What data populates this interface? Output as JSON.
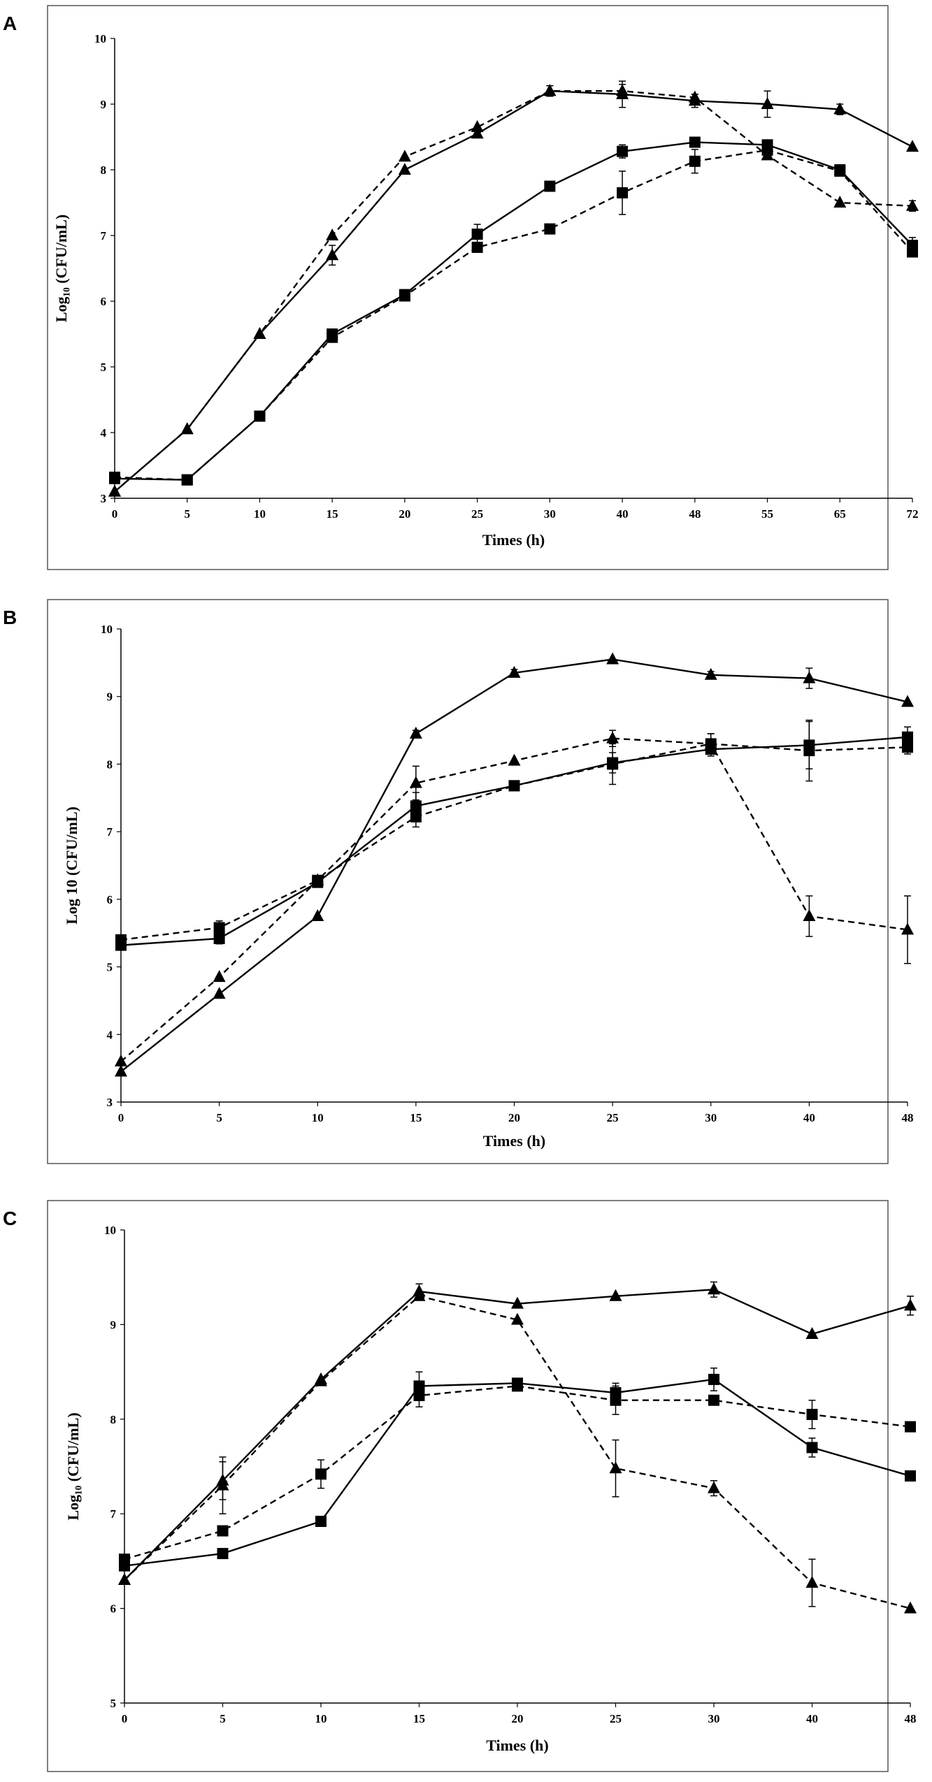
{
  "figure": {
    "marker_color": "#000000",
    "line_color": "#000000",
    "frame_color": "#555555"
  },
  "chart_data": [
    {
      "panel": "A",
      "type": "line",
      "title": "",
      "xlabel": "Times (h)",
      "ylabel": "Log₁₀ (CFU/mL)",
      "categories": [
        "0",
        "5",
        "10",
        "15",
        "20",
        "25",
        "30",
        "40",
        "48",
        "55",
        "65",
        "72"
      ],
      "yticks": [
        3,
        4,
        5,
        6,
        7,
        8,
        9,
        10
      ],
      "ylim": [
        3,
        10
      ],
      "grid": false,
      "series": [
        {
          "name": "triangle-solid",
          "marker": "triangle",
          "dash": false,
          "values": [
            3.1,
            4.05,
            5.5,
            6.7,
            8.0,
            8.55,
            9.2,
            9.15,
            9.05,
            9.0,
            8.92,
            8.35
          ],
          "errors": [
            0,
            0,
            0,
            0.15,
            0,
            0,
            0.08,
            0.2,
            0.1,
            0.2,
            0.08,
            0
          ]
        },
        {
          "name": "triangle-dashed",
          "marker": "triangle",
          "dash": true,
          "values": [
            3.1,
            4.05,
            5.5,
            7.0,
            8.2,
            8.65,
            9.2,
            9.2,
            9.1,
            8.22,
            7.5,
            7.45
          ],
          "errors": [
            0,
            0,
            0,
            0,
            0,
            0,
            0.08,
            0.1,
            0.05,
            0,
            0,
            0.08
          ]
        },
        {
          "name": "square-solid",
          "marker": "square",
          "dash": false,
          "values": [
            3.3,
            3.28,
            4.25,
            5.5,
            6.1,
            7.02,
            7.75,
            8.28,
            8.42,
            8.38,
            8.0,
            6.85
          ],
          "errors": [
            0,
            0,
            0,
            0.05,
            0.05,
            0.15,
            0,
            0.1,
            0,
            0.05,
            0.05,
            0.12
          ]
        },
        {
          "name": "square-dashed",
          "marker": "square",
          "dash": true,
          "values": [
            3.32,
            3.28,
            4.25,
            5.45,
            6.08,
            6.82,
            7.1,
            7.65,
            8.13,
            8.3,
            7.98,
            6.75
          ],
          "errors": [
            0,
            0,
            0,
            0,
            0.05,
            0,
            0,
            0.33,
            0.18,
            0,
            0,
            0
          ]
        }
      ]
    },
    {
      "panel": "B",
      "type": "line",
      "title": "",
      "xlabel": "Times (h)",
      "ylabel": "Log 10 (CFU/mL)",
      "categories": [
        "0",
        "5",
        "10",
        "15",
        "20",
        "25",
        "30",
        "40",
        "48"
      ],
      "yticks": [
        3,
        4,
        5,
        6,
        7,
        8,
        9,
        10
      ],
      "ylim": [
        3,
        10
      ],
      "grid": false,
      "series": [
        {
          "name": "triangle-solid",
          "marker": "triangle",
          "dash": false,
          "values": [
            3.45,
            4.6,
            5.75,
            8.45,
            9.35,
            9.55,
            9.32,
            9.27,
            8.92
          ],
          "errors": [
            0,
            0,
            0,
            0.05,
            0.05,
            0,
            0.05,
            0.15,
            0
          ]
        },
        {
          "name": "triangle-dashed",
          "marker": "triangle",
          "dash": true,
          "values": [
            3.6,
            4.85,
            6.28,
            7.72,
            8.05,
            8.38,
            8.3,
            5.75,
            5.55
          ],
          "errors": [
            0,
            0,
            0,
            0.25,
            0,
            0.12,
            0.15,
            0.3,
            0.5
          ]
        },
        {
          "name": "square-solid",
          "marker": "square",
          "dash": false,
          "values": [
            5.32,
            5.42,
            6.25,
            7.38,
            7.68,
            8.02,
            8.22,
            8.28,
            8.4
          ],
          "errors": [
            0,
            0.08,
            0,
            0.2,
            0,
            0.15,
            0.1,
            0.35,
            0.15
          ]
        },
        {
          "name": "square-dashed",
          "marker": "square",
          "dash": true,
          "values": [
            5.4,
            5.58,
            6.28,
            7.22,
            7.68,
            8.0,
            8.3,
            8.2,
            8.25
          ],
          "errors": [
            0,
            0.1,
            0,
            0.15,
            0.05,
            0.3,
            0.15,
            0.45,
            0.1
          ]
        }
      ]
    },
    {
      "panel": "C",
      "type": "line",
      "title": "",
      "xlabel": "Times (h)",
      "ylabel": "Log₁₀ (CFU/mL)",
      "categories": [
        "0",
        "5",
        "10",
        "15",
        "20",
        "25",
        "30",
        "40",
        "48"
      ],
      "yticks": [
        5,
        6,
        7,
        8,
        9,
        10
      ],
      "ylim": [
        5,
        10
      ],
      "grid": false,
      "series": [
        {
          "name": "triangle-solid",
          "marker": "triangle",
          "dash": false,
          "values": [
            6.3,
            7.35,
            8.42,
            9.35,
            9.22,
            9.3,
            9.37,
            8.9,
            9.2
          ],
          "errors": [
            0,
            0.2,
            0,
            0.08,
            0,
            0,
            0.08,
            0,
            0.1
          ]
        },
        {
          "name": "triangle-dashed",
          "marker": "triangle",
          "dash": true,
          "values": [
            6.3,
            7.3,
            8.4,
            9.3,
            9.05,
            7.48,
            7.27,
            6.27,
            6.0
          ],
          "errors": [
            0,
            0.3,
            0,
            0,
            0,
            0.3,
            0.08,
            0.25,
            0
          ]
        },
        {
          "name": "square-solid",
          "marker": "square",
          "dash": false,
          "values": [
            6.45,
            6.58,
            6.92,
            8.35,
            8.38,
            8.28,
            8.42,
            7.7,
            7.4
          ],
          "errors": [
            0,
            0,
            0,
            0.15,
            0.05,
            0.1,
            0.12,
            0.1,
            0
          ]
        },
        {
          "name": "square-dashed",
          "marker": "square",
          "dash": true,
          "values": [
            6.52,
            6.82,
            7.42,
            8.25,
            8.35,
            8.2,
            8.2,
            8.05,
            7.92
          ],
          "errors": [
            0,
            0,
            0.15,
            0.12,
            0.05,
            0.15,
            0,
            0.15,
            0
          ]
        }
      ]
    }
  ]
}
